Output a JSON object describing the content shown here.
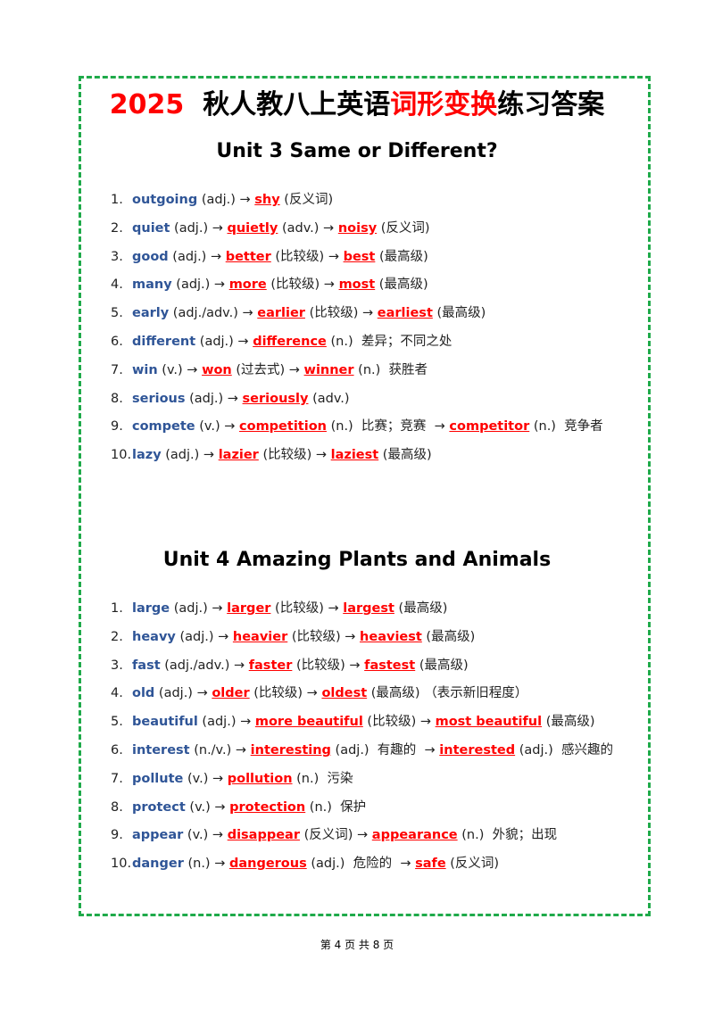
{
  "title": {
    "parts": [
      [
        "2025 ",
        "red"
      ],
      [
        " 秋人教八上英语"
      ],
      [
        "词形变换",
        "red"
      ],
      [
        "练习答案"
      ]
    ]
  },
  "units": [
    {
      "heading": "Unit 3 Same or Different?",
      "items": [
        {
          "number": "1.",
          "parts": [
            [
              "outgoing",
              "base"
            ],
            [
              " (adj.) → "
            ],
            [
              "shy",
              "answer"
            ],
            [
              " (反义词)"
            ]
          ]
        },
        {
          "number": "2.",
          "parts": [
            [
              "quiet",
              "base"
            ],
            [
              " (adj.) → "
            ],
            [
              "quietly",
              "answer"
            ],
            [
              " (adv.) → "
            ],
            [
              "noisy",
              "answer"
            ],
            [
              " (反义词)"
            ]
          ]
        },
        {
          "number": "3.",
          "parts": [
            [
              "good",
              "base"
            ],
            [
              " (adj.) → "
            ],
            [
              "better",
              "answer"
            ],
            [
              " (比较级) → "
            ],
            [
              "best",
              "answer"
            ],
            [
              " (最高级)"
            ]
          ]
        },
        {
          "number": "4.",
          "parts": [
            [
              "many",
              "base"
            ],
            [
              " (adj.) → "
            ],
            [
              "more",
              "answer"
            ],
            [
              " (比较级) → "
            ],
            [
              "most",
              "answer"
            ],
            [
              " (最高级)"
            ]
          ]
        },
        {
          "number": "5.",
          "parts": [
            [
              "early",
              "base"
            ],
            [
              " (adj./adv.) → "
            ],
            [
              "earlier",
              "answer"
            ],
            [
              " (比较级) → "
            ],
            [
              "earliest",
              "answer"
            ],
            [
              " (最高级)"
            ]
          ]
        },
        {
          "number": "6.",
          "parts": [
            [
              "different",
              "base"
            ],
            [
              " (adj.) → "
            ],
            [
              "difference",
              "answer"
            ],
            [
              " (n.)  差异；不同之处"
            ]
          ]
        },
        {
          "number": "7.",
          "parts": [
            [
              "win",
              "base"
            ],
            [
              " (v.) → "
            ],
            [
              "won",
              "answer"
            ],
            [
              " (过去式) → "
            ],
            [
              "winner",
              "answer"
            ],
            [
              " (n.)  获胜者"
            ]
          ]
        },
        {
          "number": "8.",
          "parts": [
            [
              "serious",
              "base"
            ],
            [
              " (adj.) → "
            ],
            [
              "seriously",
              "answer"
            ],
            [
              " (adv.)"
            ]
          ]
        },
        {
          "number": "9.",
          "parts": [
            [
              "compete",
              "base"
            ],
            [
              " (v.) → "
            ],
            [
              "competition",
              "answer"
            ],
            [
              " (n.)  比赛；竞赛  → "
            ],
            [
              "competitor",
              "answer"
            ],
            [
              " (n.)  竞争者"
            ]
          ]
        },
        {
          "number": "10.",
          "parts": [
            [
              "lazy",
              "base"
            ],
            [
              " (adj.) → "
            ],
            [
              "lazier",
              "answer"
            ],
            [
              " (比较级) → "
            ],
            [
              "laziest",
              "answer"
            ],
            [
              " (最高级)"
            ]
          ]
        }
      ]
    },
    {
      "heading": "Unit 4 Amazing Plants and Animals",
      "items": [
        {
          "number": "1.",
          "parts": [
            [
              "large",
              "base"
            ],
            [
              " (adj.) → "
            ],
            [
              "larger",
              "answer"
            ],
            [
              " (比较级) → "
            ],
            [
              "largest",
              "answer"
            ],
            [
              " (最高级)"
            ]
          ]
        },
        {
          "number": "2.",
          "parts": [
            [
              "heavy",
              "base"
            ],
            [
              " (adj.) → "
            ],
            [
              "heavier",
              "answer"
            ],
            [
              " (比较级) → "
            ],
            [
              "heaviest",
              "answer"
            ],
            [
              " (最高级)"
            ]
          ]
        },
        {
          "number": "3.",
          "parts": [
            [
              "fast",
              "base"
            ],
            [
              " (adj./adv.) → "
            ],
            [
              "faster",
              "answer"
            ],
            [
              " (比较级) → "
            ],
            [
              "fastest",
              "answer"
            ],
            [
              " (最高级)"
            ]
          ]
        },
        {
          "number": "4.",
          "parts": [
            [
              "old",
              "base"
            ],
            [
              " (adj.) → "
            ],
            [
              "older",
              "answer"
            ],
            [
              " (比较级) → "
            ],
            [
              "oldest",
              "answer"
            ],
            [
              " (最高级) （表示新旧程度）"
            ]
          ]
        },
        {
          "number": "5.",
          "parts": [
            [
              "beautiful",
              "base"
            ],
            [
              " (adj.) → "
            ],
            [
              "more beautiful",
              "answer"
            ],
            [
              " (比较级) → "
            ],
            [
              "most beautiful",
              "answer"
            ],
            [
              " (最高级)"
            ]
          ]
        },
        {
          "number": "6.",
          "parts": [
            [
              "interest",
              "base"
            ],
            [
              " (n./v.) → "
            ],
            [
              "interesting",
              "answer"
            ],
            [
              " (adj.)  有趣的  → "
            ],
            [
              "interested",
              "answer"
            ],
            [
              " (adj.)  感兴趣的"
            ]
          ]
        },
        {
          "number": "7.",
          "parts": [
            [
              "pollute",
              "base"
            ],
            [
              " (v.) → "
            ],
            [
              "pollution",
              "answer"
            ],
            [
              " (n.)  污染"
            ]
          ]
        },
        {
          "number": "8.",
          "parts": [
            [
              "protect",
              "base"
            ],
            [
              " (v.) → "
            ],
            [
              "protection",
              "answer"
            ],
            [
              " (n.)  保护"
            ]
          ]
        },
        {
          "number": "9.",
          "parts": [
            [
              "appear",
              "base"
            ],
            [
              " (v.) → "
            ],
            [
              "disappear",
              "answer"
            ],
            [
              " (反义词) → "
            ],
            [
              "appearance",
              "answer"
            ],
            [
              " (n.)  外貌；出现"
            ]
          ]
        },
        {
          "number": "10.",
          "parts": [
            [
              "danger",
              "base"
            ],
            [
              " (n.) → "
            ],
            [
              "dangerous",
              "answer"
            ],
            [
              " (adj.)  危险的  → "
            ],
            [
              "safe",
              "answer"
            ],
            [
              " (反义词)"
            ]
          ]
        }
      ]
    }
  ],
  "footer": "第 4 页 共 8 页"
}
